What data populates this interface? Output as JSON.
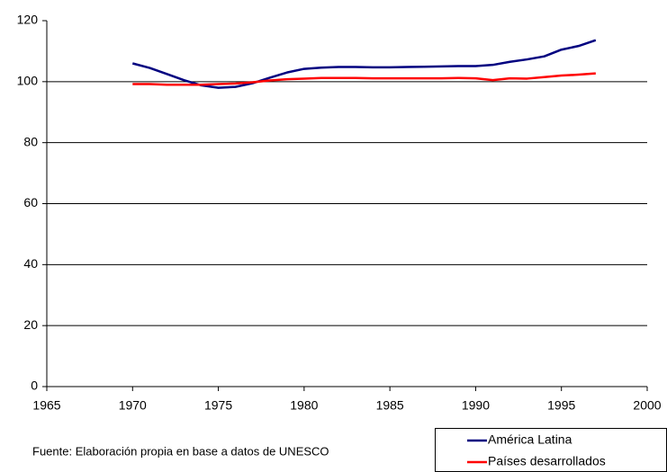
{
  "chart_data": {
    "type": "line",
    "x": [
      1970,
      1971,
      1972,
      1973,
      1974,
      1975,
      1976,
      1977,
      1978,
      1979,
      1980,
      1981,
      1982,
      1983,
      1984,
      1985,
      1986,
      1987,
      1988,
      1989,
      1990,
      1991,
      1992,
      1993,
      1994,
      1995,
      1996,
      1997
    ],
    "series": [
      {
        "name": "América Latina",
        "color": "#000080",
        "values": [
          106,
          104.5,
          102.5,
          100.5,
          98.8,
          98,
          98.3,
          99.5,
          101.3,
          103,
          104.2,
          104.6,
          104.8,
          104.8,
          104.7,
          104.7,
          104.8,
          104.9,
          105,
          105.1,
          105.1,
          105.5,
          106.5,
          107.3,
          108.3,
          110.5,
          111.7,
          113.6
        ]
      },
      {
        "name": "Países desarrollados",
        "color": "#ff0000",
        "values": [
          99.2,
          99.2,
          99,
          99,
          99,
          99.2,
          99.4,
          99.8,
          100.4,
          100.8,
          101,
          101.2,
          101.2,
          101.2,
          101.1,
          101.1,
          101.1,
          101.1,
          101.1,
          101.2,
          101.1,
          100.5,
          101.1,
          101,
          101.5,
          102,
          102.3,
          102.7
        ]
      }
    ],
    "xlim": [
      1965,
      2000
    ],
    "xticks": [
      1965,
      1970,
      1975,
      1980,
      1985,
      1990,
      1995,
      2000
    ],
    "ylim": [
      0,
      120
    ],
    "yticks": [
      0,
      20,
      40,
      60,
      80,
      100,
      120
    ],
    "grid": true,
    "legend": "lower right",
    "source": "Fuente: Elaboración propia en base a datos de UNESCO"
  }
}
